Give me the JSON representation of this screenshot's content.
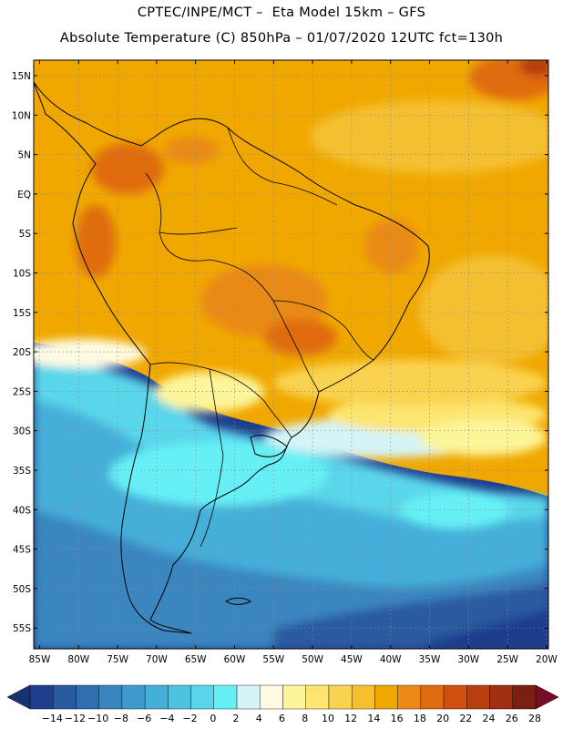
{
  "header": {
    "line1": "CPTEC/INPE/MCT –  Eta Model 15km – GFS",
    "line2": "Absolute Temperature (C) 850hPa – 01/07/2020 12UTC fct=130h"
  },
  "axes": {
    "lat_labels": [
      "15N",
      "10N",
      "5N",
      "EQ",
      "5S",
      "10S",
      "15S",
      "20S",
      "25S",
      "30S",
      "35S",
      "40S",
      "45S",
      "50S",
      "55S"
    ],
    "lon_labels": [
      "85W",
      "80W",
      "75W",
      "70W",
      "65W",
      "60W",
      "55W",
      "50W",
      "45W",
      "40W",
      "35W",
      "30W",
      "25W",
      "20W"
    ]
  },
  "colorbar": {
    "labels": [
      "-14",
      "-12",
      "-10",
      "-8",
      "-6",
      "-4",
      "-2",
      "0",
      "2",
      "4",
      "6",
      "8",
      "10",
      "12",
      "14",
      "16",
      "18",
      "20",
      "22",
      "24",
      "26",
      "28"
    ],
    "colors": [
      "#1f3e8c",
      "#2a5aa0",
      "#3170b0",
      "#3a86bf",
      "#3f9acd",
      "#44afd9",
      "#4ec3e0",
      "#5ad6ea",
      "#66f0f5",
      "#d4f4f8",
      "#fffbe2",
      "#fdf59a",
      "#fde56f",
      "#f9d350",
      "#f4c030",
      "#f0a800",
      "#ea8a18",
      "#e06c10",
      "#d05010",
      "#b83e10",
      "#a02e10",
      "#7c1e10"
    ],
    "low_end_color": "#173272",
    "high_end_color": "#7a0c28"
  }
}
